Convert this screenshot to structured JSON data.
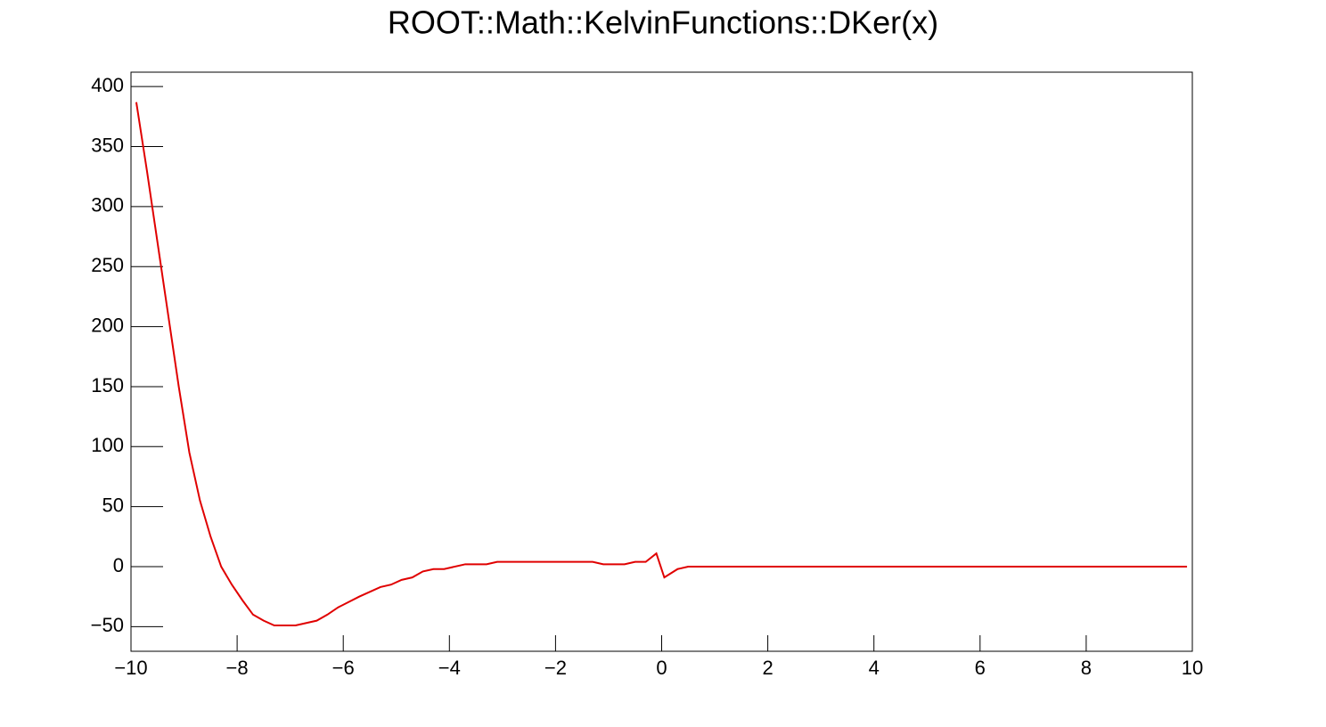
{
  "chart_data": {
    "type": "line",
    "title": "ROOT::Math::KelvinFunctions::DKer(x)",
    "x": [
      -9.9,
      -9.7,
      -9.5,
      -9.3,
      -9.1,
      -8.9,
      -8.7,
      -8.5,
      -8.3,
      -8.1,
      -7.9,
      -7.7,
      -7.5,
      -7.3,
      -6.9,
      -6.5,
      -6.3,
      -6.1,
      -5.7,
      -5.3,
      -5.1,
      -4.9,
      -4.7,
      -4.5,
      -4.3,
      -4.1,
      -3.7,
      -3.3,
      -3.1,
      -1.3,
      -1.1,
      -0.7,
      -0.5,
      -0.3,
      -0.1,
      0.05,
      0.3,
      0.5,
      9.9
    ],
    "series": [
      {
        "color": "#e00000",
        "values": [
          387,
          330,
          270,
          210,
          150,
          95,
          55,
          25,
          0,
          -15,
          -28,
          -40,
          -45,
          -49,
          -49,
          -45,
          -40,
          -34,
          -25,
          -17,
          -15,
          -11,
          -9,
          -4,
          -2,
          -2,
          2,
          2,
          4,
          4,
          2,
          2,
          4,
          4,
          11,
          -9,
          -2,
          0,
          0
        ]
      }
    ],
    "xlim": [
      -10,
      10
    ],
    "xticks": [
      {
        "value": -10,
        "label": "−10"
      },
      {
        "value": -8,
        "label": "−8"
      },
      {
        "value": -6,
        "label": "−6"
      },
      {
        "value": -4,
        "label": "−4"
      },
      {
        "value": -2,
        "label": "−2"
      },
      0,
      2,
      4,
      6,
      8,
      10
    ],
    "ylim": [
      -70.5,
      412
    ],
    "yticks": [
      {
        "value": -50,
        "label": "−50"
      },
      0,
      50,
      100,
      150,
      200,
      250,
      300,
      350,
      400
    ]
  }
}
